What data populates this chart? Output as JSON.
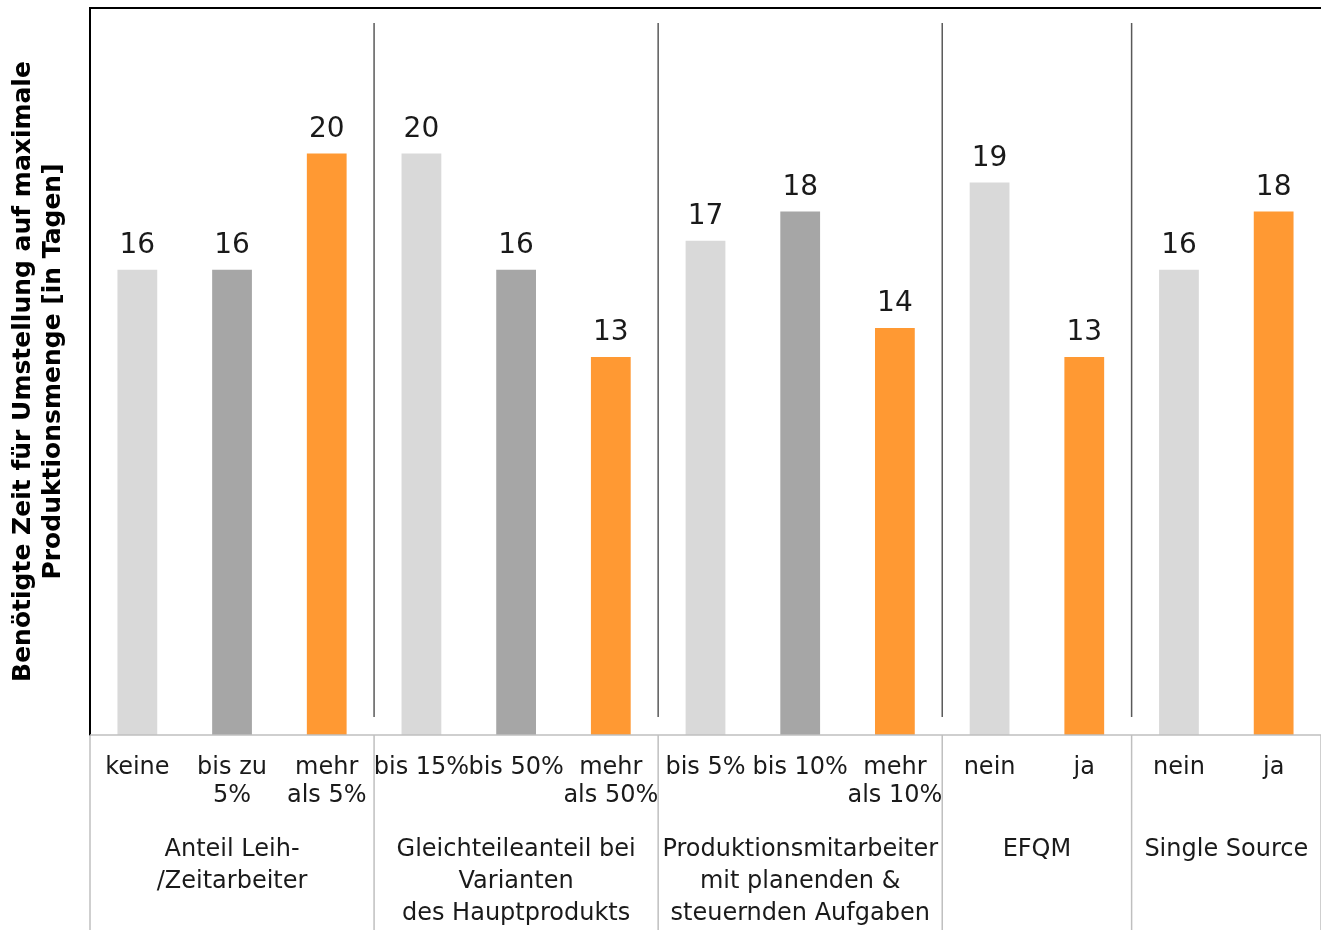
{
  "chart_data": {
    "type": "bar",
    "ylabel": "Benötigte Zeit für Umstellung auf maximale\nProduktionsmenge [in Tagen]",
    "categories": [
      "keine",
      "bis zu\n5%",
      "mehr\nals 5%",
      "bis 15%",
      "bis 50%",
      "mehr\nals 50%",
      "bis 5%",
      "bis 10%",
      "mehr\nals 10%",
      "nein",
      "ja",
      "nein",
      "ja"
    ],
    "values": [
      16,
      16,
      20,
      20,
      16,
      13,
      17,
      18,
      14,
      19,
      13,
      16,
      18
    ],
    "colors": [
      "#d9d9d9",
      "#a6a6a6",
      "#ff9933",
      "#d9d9d9",
      "#a6a6a6",
      "#ff9933",
      "#d9d9d9",
      "#a6a6a6",
      "#ff9933",
      "#d9d9d9",
      "#ff9933",
      "#d9d9d9",
      "#ff9933"
    ],
    "annotations": [
      "Anteil Leih-\n/Zeitarbeiter",
      "Gleichteileanteil bei\nVarianten\ndes Hauptprodukts",
      "Produktionsmitarbeiter\nmit planenden &\nsteuernden Aufgaben",
      "EFQM",
      "Single Source"
    ],
    "data_labels": true,
    "grid": false,
    "legend": false
  }
}
